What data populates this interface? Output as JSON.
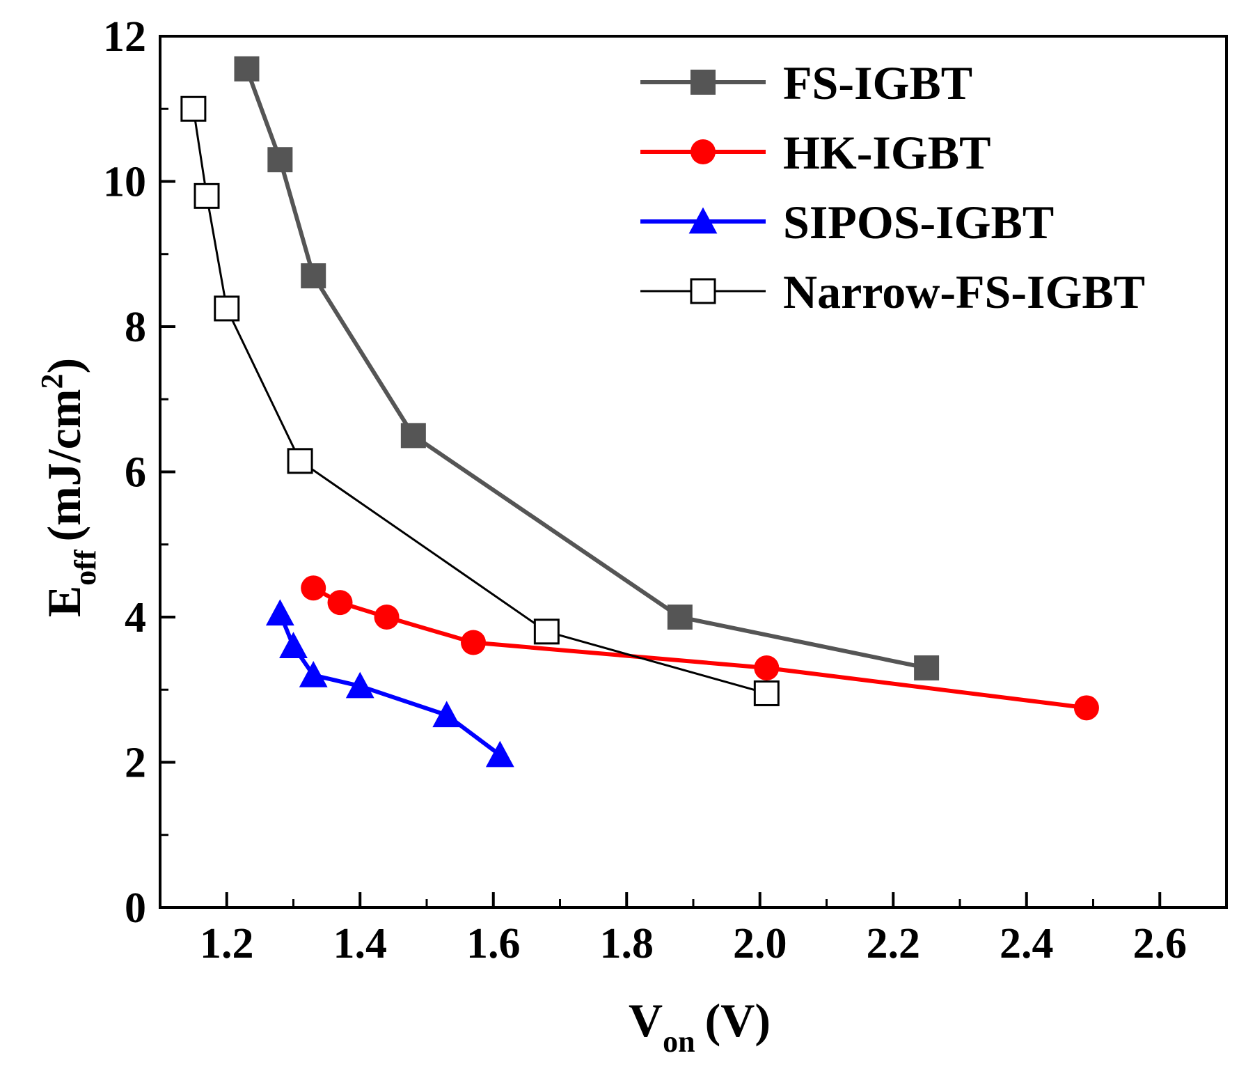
{
  "chart_data": {
    "type": "line",
    "xlabel": {
      "main": "V",
      "sub": "on",
      "unit": "(V)"
    },
    "ylabel": {
      "main": "E",
      "sub": "off",
      "unit": "(mJ/cm",
      "sup": "2",
      "close": ")"
    },
    "xlim": [
      1.1,
      2.7
    ],
    "ylim": [
      0,
      12
    ],
    "xticks": [
      1.2,
      1.4,
      1.6,
      1.8,
      2.0,
      2.2,
      2.4,
      2.6
    ],
    "xtick_labels": [
      "1.2",
      "1.4",
      "1.6",
      "1.8",
      "2.0",
      "2.2",
      "2.4",
      "2.6"
    ],
    "yticks": [
      0,
      2,
      4,
      6,
      8,
      10,
      12
    ],
    "ytick_labels": [
      "0",
      "2",
      "4",
      "6",
      "8",
      "10",
      "12"
    ],
    "legend_position": "top-right",
    "series": [
      {
        "name": "FS-IGBT",
        "color": "#555555",
        "marker": "filled-square",
        "line_width": 6,
        "x": [
          1.23,
          1.28,
          1.33,
          1.48,
          1.88,
          2.25
        ],
        "y": [
          11.55,
          10.3,
          8.7,
          6.5,
          4.0,
          3.3
        ]
      },
      {
        "name": "HK-IGBT",
        "color": "#ff0000",
        "marker": "filled-circle",
        "line_width": 6,
        "x": [
          1.33,
          1.37,
          1.44,
          1.57,
          2.01,
          2.49
        ],
        "y": [
          4.4,
          4.2,
          4.0,
          3.65,
          3.3,
          2.75
        ]
      },
      {
        "name": "SIPOS-IGBT",
        "color": "#0000ff",
        "marker": "filled-triangle",
        "line_width": 6,
        "x": [
          1.28,
          1.3,
          1.33,
          1.4,
          1.53,
          1.61
        ],
        "y": [
          4.05,
          3.6,
          3.2,
          3.05,
          2.65,
          2.1
        ]
      },
      {
        "name": "Narrow-FS-IGBT",
        "color": "#000000",
        "marker": "open-square",
        "line_width": 3,
        "x": [
          1.15,
          1.17,
          1.2,
          1.31,
          1.68,
          2.01
        ],
        "y": [
          11.0,
          9.8,
          8.25,
          6.15,
          3.8,
          2.95
        ]
      }
    ]
  }
}
